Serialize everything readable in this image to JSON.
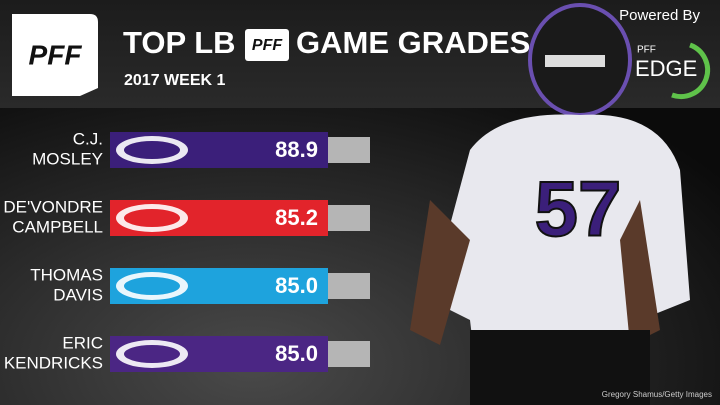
{
  "header": {
    "logo": "PFF",
    "title_left": "TOP LB",
    "title_logo": "PFF",
    "title_right": "GAME GRADES",
    "subtitle": "2017 WEEK 1",
    "powered_by": "Powered By",
    "edge_small": "PFF",
    "edge": "EDGE"
  },
  "rows": [
    {
      "name_lines": [
        "C.J.",
        "MOSLEY"
      ],
      "grade": "88.9",
      "color": "#3b1f7a"
    },
    {
      "name_lines": [
        "DE'VONDRE",
        "CAMPBELL"
      ],
      "grade": "85.2",
      "color": "#e2242b"
    },
    {
      "name_lines": [
        "THOMAS",
        "DAVIS"
      ],
      "grade": "85.0",
      "color": "#1ea3dd"
    },
    {
      "name_lines": [
        "ERIC",
        "KENDRICKS"
      ],
      "grade": "85.0",
      "color": "#4b2684"
    }
  ],
  "photo": {
    "jersey": "57",
    "credit": "Gregory Shamus/Getty Images"
  }
}
